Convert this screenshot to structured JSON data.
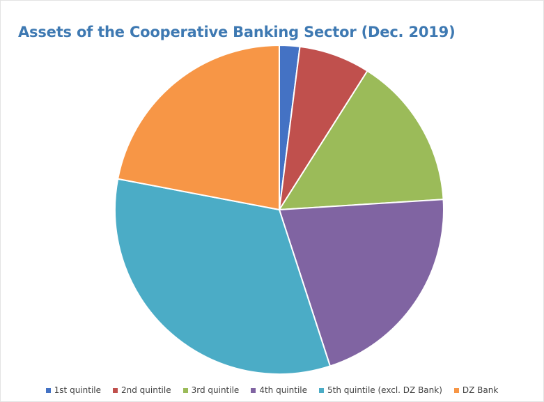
{
  "chart_data": {
    "type": "pie",
    "title": "Assets of the Cooperative Banking Sector (Dec. 2019)",
    "categories": [
      "1st quintile",
      "2nd quintile",
      "3rd quintile",
      "4th quintile",
      "5th quintile (excl. DZ Bank)",
      "DZ Bank"
    ],
    "values": [
      2,
      7,
      15,
      21,
      33,
      22
    ],
    "colors": [
      "#4472c4",
      "#c0504d",
      "#9bbb59",
      "#8064a2",
      "#4bacc6",
      "#f79646"
    ],
    "legend_position": "bottom",
    "start_angle": "12 o'clock",
    "direction": "clockwise"
  }
}
